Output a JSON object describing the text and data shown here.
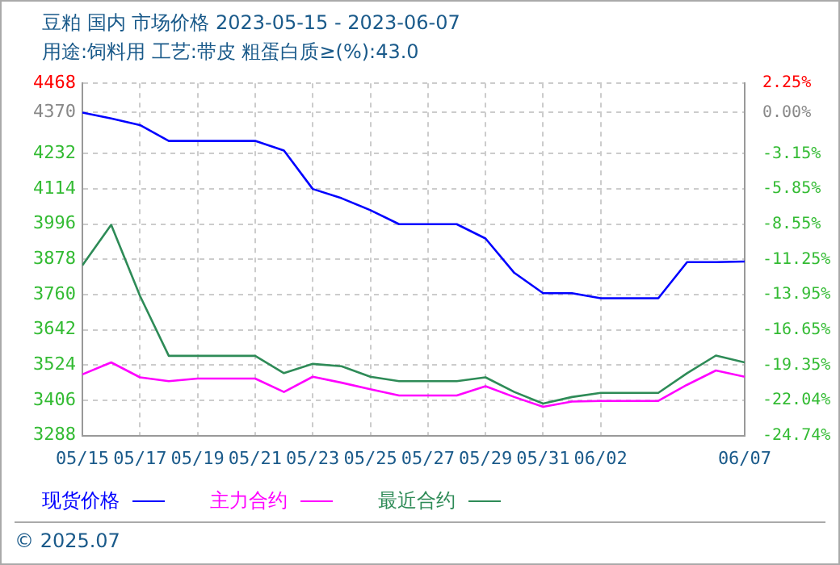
{
  "chart_data": {
    "type": "line",
    "title": "豆粕 国内 市场价格 2023-05-15 - 2023-06-07",
    "subtitle": "用途:饲料用 工艺:带皮 粗蛋白质≥(%):43.0",
    "x": [
      "2023-05-15",
      "2023-05-16",
      "2023-05-17",
      "2023-05-18",
      "2023-05-19",
      "2023-05-20",
      "2023-05-21",
      "2023-05-22",
      "2023-05-23",
      "2023-05-24",
      "2023-05-25",
      "2023-05-26",
      "2023-05-27",
      "2023-05-28",
      "2023-05-29",
      "2023-05-30",
      "2023-05-31",
      "2023-06-01",
      "2023-06-02",
      "2023-06-03",
      "2023-06-04",
      "2023-06-05",
      "2023-06-06",
      "2023-06-07"
    ],
    "series": [
      {
        "name": "现货价格",
        "color": "#0000ff",
        "values": [
          4370,
          4350,
          4328,
          4275,
          4275,
          4275,
          4275,
          4243,
          4114,
          4083,
          4043,
          3996,
          3996,
          3996,
          3948,
          3833,
          3765,
          3765,
          3748,
          3748,
          3748,
          3869,
          3869,
          3871
        ]
      },
      {
        "name": "主力合约",
        "color": "#ff00ff",
        "values": [
          3493,
          3533,
          3483,
          3470,
          3479,
          3479,
          3479,
          3434,
          3485,
          3465,
          3443,
          3422,
          3422,
          3422,
          3453,
          3417,
          3384,
          3402,
          3404,
          3404,
          3404,
          3458,
          3506,
          3485
        ]
      },
      {
        "name": "最近合约",
        "color": "#2e8b57",
        "values": [
          3858,
          3994,
          3756,
          3555,
          3555,
          3555,
          3555,
          3497,
          3528,
          3520,
          3485,
          3470,
          3470,
          3470,
          3483,
          3434,
          3395,
          3417,
          3431,
          3431,
          3431,
          3497,
          3556,
          3533
        ]
      }
    ],
    "xlim": [
      "2023-05-15",
      "2023-06-07"
    ],
    "xticks": [
      {
        "value": "2023-05-15",
        "label": "05/15"
      },
      {
        "value": "2023-05-17",
        "label": "05/17"
      },
      {
        "value": "2023-05-19",
        "label": "05/19"
      },
      {
        "value": "2023-05-21",
        "label": "05/21"
      },
      {
        "value": "2023-05-23",
        "label": "05/23"
      },
      {
        "value": "2023-05-25",
        "label": "05/25"
      },
      {
        "value": "2023-05-27",
        "label": "05/27"
      },
      {
        "value": "2023-05-29",
        "label": "05/29"
      },
      {
        "value": "2023-05-31",
        "label": "05/31"
      },
      {
        "value": "2023-06-02",
        "label": "06/02"
      },
      {
        "value": "2023-06-07",
        "label": "06/07"
      }
    ],
    "ylim": [
      3288,
      4468
    ],
    "yticks": [
      3288,
      3406,
      3524,
      3642,
      3760,
      3878,
      3996,
      4114,
      4232,
      4370,
      4468
    ],
    "y2lim": [
      -24.74,
      2.25
    ],
    "y2ticks": [
      {
        "value": -24.74,
        "label": "-24.74%"
      },
      {
        "value": -22.04,
        "label": "-22.04%"
      },
      {
        "value": -19.35,
        "label": "-19.35%"
      },
      {
        "value": -16.65,
        "label": "-16.65%"
      },
      {
        "value": -13.95,
        "label": "-13.95%"
      },
      {
        "value": -11.25,
        "label": "-11.25%"
      },
      {
        "value": -8.55,
        "label": "-8.55%"
      },
      {
        "value": -5.85,
        "label": "-5.85%"
      },
      {
        "value": -3.15,
        "label": "-3.15%"
      },
      {
        "value": 0,
        "label": "0.00%"
      },
      {
        "value": 2.25,
        "label": "2.25%"
      }
    ],
    "grid": true,
    "legend": "bottom",
    "marker": "none",
    "line_style": "solid",
    "annotations": [
      "© 2025.07"
    ]
  }
}
